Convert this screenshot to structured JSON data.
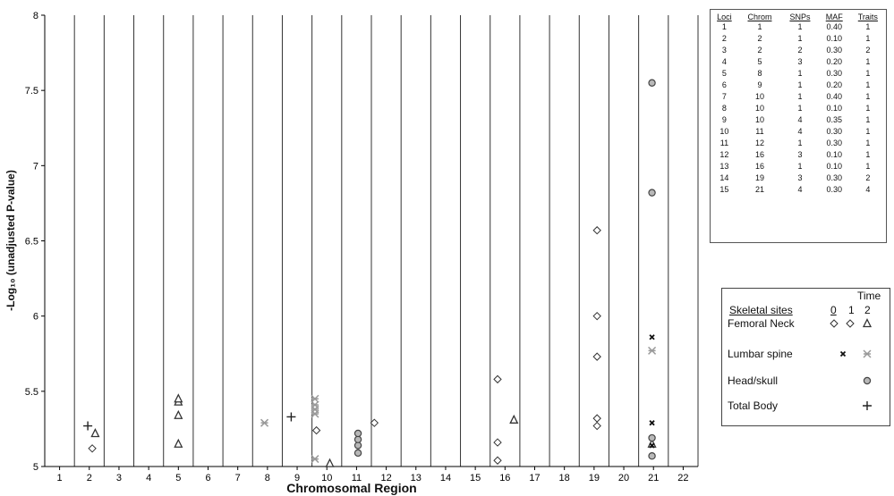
{
  "chart_data": {
    "type": "scatter",
    "xlabel": "Chromosomal Region",
    "ylabel": "-Log₁₀ (unadjusted P-value)",
    "ylim": [
      5,
      8
    ],
    "yticks": [
      "5",
      "5.5",
      "6",
      "6.5",
      "7",
      "7.5",
      "8"
    ],
    "categories": [
      "1",
      "2",
      "3",
      "4",
      "5",
      "6",
      "7",
      "8",
      "9",
      "10",
      "11",
      "12",
      "13",
      "14",
      "15",
      "16",
      "17",
      "18",
      "19",
      "20",
      "21",
      "22"
    ],
    "grid": "vertical lines between regions",
    "series": [
      {
        "name": "Femoral Neck 0",
        "marker": "diamond-open",
        "points": [
          [
            2.1,
            5.12
          ],
          [
            9.65,
            5.24
          ],
          [
            11.6,
            5.29
          ],
          [
            15.75,
            5.04
          ],
          [
            15.75,
            5.16
          ],
          [
            15.75,
            5.58
          ],
          [
            19.1,
            5.27
          ],
          [
            19.1,
            5.32
          ],
          [
            19.1,
            5.73
          ],
          [
            19.1,
            6.0
          ],
          [
            19.1,
            6.57
          ]
        ]
      },
      {
        "name": "Femoral Neck 2",
        "marker": "triangle-open",
        "points": [
          [
            2.2,
            5.22
          ],
          [
            5.0,
            5.15
          ],
          [
            5.0,
            5.34
          ],
          [
            5.0,
            5.43
          ],
          [
            5.0,
            5.45
          ],
          [
            10.1,
            5.02
          ],
          [
            16.3,
            5.31
          ],
          [
            20.95,
            5.15
          ]
        ]
      },
      {
        "name": "Lumbar spine 1",
        "marker": "x-small",
        "points": [
          [
            20.95,
            5.86
          ],
          [
            20.95,
            5.29
          ],
          [
            20.95,
            5.14
          ]
        ]
      },
      {
        "name": "Lumbar spine 2",
        "marker": "asterisk-gray",
        "points": [
          [
            7.9,
            5.29
          ],
          [
            9.6,
            5.05
          ],
          [
            9.6,
            5.35
          ],
          [
            9.6,
            5.38
          ],
          [
            9.6,
            5.41
          ],
          [
            9.6,
            5.45
          ],
          [
            20.95,
            5.77
          ]
        ]
      },
      {
        "name": "Head/skull 2",
        "marker": "circle-gray",
        "points": [
          [
            11.05,
            5.09
          ],
          [
            11.05,
            5.14
          ],
          [
            11.05,
            5.18
          ],
          [
            11.05,
            5.22
          ],
          [
            20.95,
            5.07
          ],
          [
            20.95,
            5.19
          ],
          [
            20.95,
            6.82
          ],
          [
            20.95,
            7.55
          ]
        ]
      },
      {
        "name": "Total Body",
        "marker": "plus",
        "points": [
          [
            1.95,
            5.27
          ],
          [
            8.8,
            5.33
          ]
        ]
      }
    ]
  },
  "loci_table": {
    "headers": [
      "Loci",
      "Chrom",
      "SNPs",
      "MAF",
      "Traits"
    ],
    "rows": [
      [
        "1",
        "1",
        "1",
        "0.40",
        "1"
      ],
      [
        "2",
        "2",
        "1",
        "0.10",
        "1"
      ],
      [
        "3",
        "2",
        "2",
        "0.30",
        "2"
      ],
      [
        "4",
        "5",
        "3",
        "0.20",
        "1"
      ],
      [
        "5",
        "8",
        "1",
        "0.30",
        "1"
      ],
      [
        "6",
        "9",
        "1",
        "0.20",
        "1"
      ],
      [
        "7",
        "10",
        "1",
        "0.40",
        "1"
      ],
      [
        "8",
        "10",
        "1",
        "0.10",
        "1"
      ],
      [
        "9",
        "10",
        "4",
        "0.35",
        "1"
      ],
      [
        "10",
        "11",
        "4",
        "0.30",
        "1"
      ],
      [
        "11",
        "12",
        "1",
        "0.30",
        "1"
      ],
      [
        "12",
        "16",
        "3",
        "0.10",
        "1"
      ],
      [
        "13",
        "16",
        "1",
        "0.10",
        "1"
      ],
      [
        "14",
        "19",
        "3",
        "0.30",
        "2"
      ],
      [
        "15",
        "21",
        "4",
        "0.30",
        "4"
      ]
    ]
  },
  "legend": {
    "time_label": "Time",
    "sites_label": "Skeletal sites",
    "time_values": [
      "0",
      "1",
      "2"
    ],
    "entries": [
      {
        "label": "Femoral Neck",
        "markers": [
          "diamond-open",
          "diamond-open",
          "triangle-open"
        ]
      },
      {
        "label": "Lumbar spine",
        "markers": [
          "x-small",
          "asterisk-gray"
        ]
      },
      {
        "label": "Head/skull",
        "markers": [
          "circle-gray"
        ]
      },
      {
        "label": "Total Body",
        "markers": [
          "plus"
        ]
      }
    ]
  },
  "colors": {
    "marker_dark": "#333333",
    "marker_gray": "#999999",
    "gridline": "#333333"
  }
}
